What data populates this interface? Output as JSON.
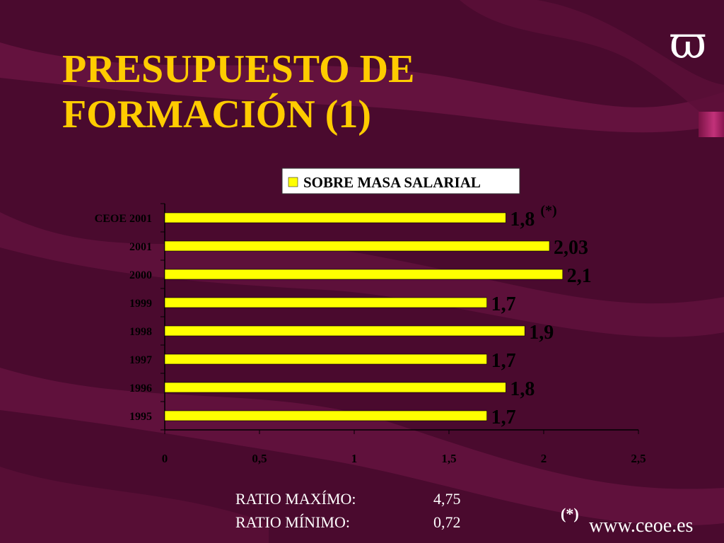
{
  "slide": {
    "title_line1": "PRESUPUESTO DE",
    "title_line2": "FORMACIÓN (1)",
    "logo_symbol": "ϖ",
    "website": "www.ceoe.es",
    "footnote_marker": "(*)",
    "ratios": [
      {
        "label": "RATIO MAXÍMO:",
        "value": "4,75"
      },
      {
        "label": "RATIO MÍNIMO:",
        "value": "0,72"
      }
    ]
  },
  "colors": {
    "background": "#4a0a2e",
    "title": "#ffcc00",
    "bar": "#ffff00",
    "text": "#ffffff",
    "chart_text": "#000000"
  },
  "chart_data": {
    "type": "bar",
    "orientation": "horizontal",
    "categories": [
      "CEOE 2001",
      "2001",
      "2000",
      "1999",
      "1998",
      "1997",
      "1996",
      "1995"
    ],
    "series": [
      {
        "name": "SOBRE MASA SALARIAL",
        "values": [
          1.8,
          2.03,
          2.1,
          1.7,
          1.9,
          1.7,
          1.8,
          1.7
        ],
        "labels": [
          "1,8",
          "2,03",
          "2,1",
          "1,7",
          "1,9",
          "1,7",
          "1,8",
          "1,7"
        ]
      }
    ],
    "annotations": [
      {
        "category": "CEOE 2001",
        "text": "(*)"
      }
    ],
    "xlim": [
      0,
      2.5
    ],
    "xticks": [
      0,
      0.5,
      1,
      1.5,
      2,
      2.5
    ],
    "xtick_labels": [
      "0",
      "0,5",
      "1",
      "1,5",
      "2",
      "2,5"
    ],
    "legend_position": "top-right",
    "grid": false
  }
}
